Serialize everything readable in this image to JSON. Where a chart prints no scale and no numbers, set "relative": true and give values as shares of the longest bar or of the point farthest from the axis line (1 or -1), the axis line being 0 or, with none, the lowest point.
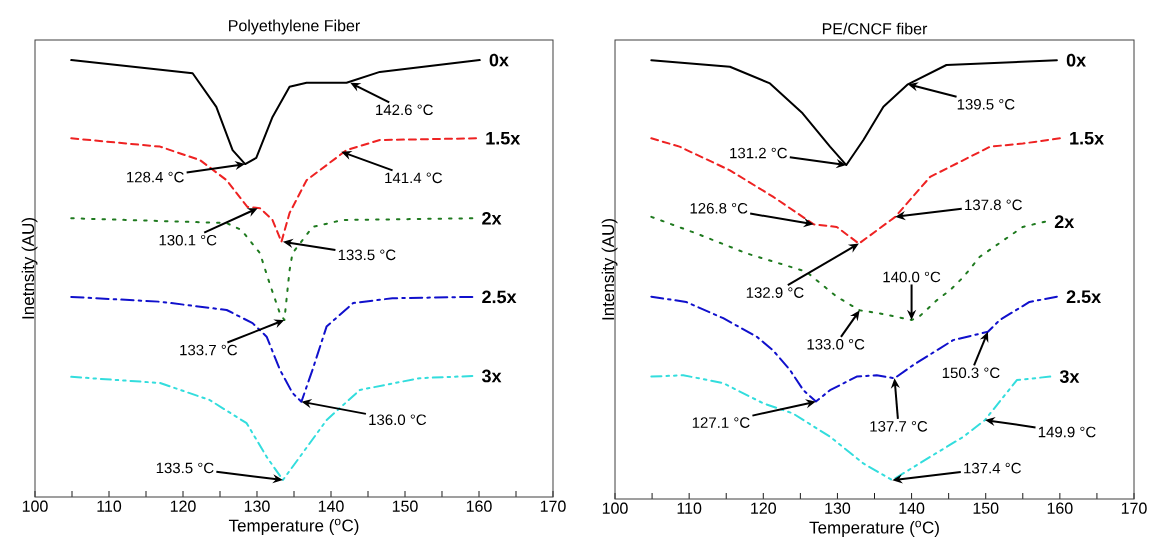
{
  "chart_data": [
    {
      "type": "line",
      "title": "Polyethylene Fiber",
      "xlabel": "Temperature ($^{o}$C)",
      "ylabel": "Inetnsity (AU)",
      "relative": true,
      "xlim": [
        100,
        170
      ],
      "xticks": [
        100,
        {
          "value": 105,
          "label": null
        },
        110,
        {
          "value": 115,
          "label": null
        },
        120,
        {
          "value": 125,
          "label": null
        },
        130,
        {
          "value": 135,
          "label": null
        },
        140,
        {
          "value": 145,
          "label": null
        },
        150,
        {
          "value": 155,
          "label": null
        },
        160,
        {
          "value": 165,
          "label": null
        },
        170
      ],
      "series": [
        {
          "name": "0x",
          "color": "#000000",
          "line_style": "solid",
          "x": [
            104.9,
            121.3,
            124.5,
            126.7,
            128.4,
            129.9,
            132.1,
            134.4,
            136.7,
            142.1,
            146.6,
            160.1
          ],
          "values": [
            1.0,
            0.97,
            0.893,
            0.794,
            0.762,
            0.776,
            0.87,
            0.939,
            0.948,
            0.948,
            0.973,
            1.0
          ]
        },
        {
          "name": "1.5x",
          "color": "#ee2222",
          "line_style": "dashed",
          "x": [
            104.9,
            116.9,
            122.3,
            125.9,
            128.7,
            130.4,
            132.1,
            133.3,
            134.4,
            136.7,
            142.1,
            146.6,
            159.6
          ],
          "values": [
            0.821,
            0.802,
            0.771,
            0.725,
            0.664,
            0.661,
            0.634,
            0.584,
            0.65,
            0.725,
            0.794,
            0.817,
            0.821
          ]
        },
        {
          "name": "2x",
          "color": "#1f7a1f",
          "line_style": "dotted",
          "x": [
            104.9,
            125.9,
            127.9,
            130.4,
            131.7,
            133.1,
            133.7,
            134.4,
            134.8,
            137.5,
            141.6,
            159.1
          ],
          "values": [
            0.638,
            0.627,
            0.611,
            0.558,
            0.489,
            0.42,
            0.405,
            0.519,
            0.558,
            0.618,
            0.634,
            0.638
          ]
        },
        {
          "name": "2.5x",
          "color": "#1010cc",
          "line_style": "dashdot",
          "x": [
            104.9,
            116.9,
            125.9,
            129.4,
            131.3,
            133.1,
            134.8,
            136.0,
            137.5,
            139.4,
            143.0,
            148.3,
            159.1
          ],
          "values": [
            0.458,
            0.447,
            0.428,
            0.398,
            0.367,
            0.291,
            0.238,
            0.218,
            0.291,
            0.39,
            0.444,
            0.455,
            0.458
          ]
        },
        {
          "name": "3x",
          "color": "#33dddd",
          "line_style": "dashdotdotted",
          "x": [
            104.9,
            116.9,
            123.6,
            128.6,
            131.3,
            133.5,
            135.8,
            139.4,
            143.9,
            152.0,
            159.1
          ],
          "values": [
            0.275,
            0.261,
            0.222,
            0.169,
            0.092,
            0.039,
            0.092,
            0.176,
            0.245,
            0.272,
            0.277
          ]
        }
      ],
      "annotations": [
        {
          "text": "142.6 °C",
          "x": 142.6,
          "y": 0.948
        },
        {
          "text": "128.4 °C",
          "x": 128.4,
          "y": 0.762
        },
        {
          "text": "141.4 °C",
          "x": 141.4,
          "y": 0.79
        },
        {
          "text": "130.1 °C",
          "x": 130.1,
          "y": 0.661
        },
        {
          "text": "133.5 °C",
          "x": 133.5,
          "y": 0.584
        },
        {
          "text": "133.7 °C",
          "x": 133.7,
          "y": 0.405
        },
        {
          "text": "136.0 °C",
          "x": 136.0,
          "y": 0.218
        },
        {
          "text": "133.5 °C",
          "x": 133.5,
          "y": 0.039
        }
      ]
    },
    {
      "type": "line",
      "title": "PE/CNCF fiber",
      "xlabel": "Temperature ($^{o}$C)",
      "ylabel": "Intensity (AU)",
      "relative": true,
      "xlim": [
        100,
        170
      ],
      "xticks": [
        100,
        {
          "value": 105,
          "label": null
        },
        110,
        {
          "value": 115,
          "label": null
        },
        120,
        {
          "value": 125,
          "label": null
        },
        130,
        {
          "value": 135,
          "label": null
        },
        140,
        {
          "value": 145,
          "label": null
        },
        150,
        {
          "value": 155,
          "label": null
        },
        160,
        {
          "value": 165,
          "label": null
        },
        170
      ],
      "series": [
        {
          "name": "0x",
          "color": "#000000",
          "line_style": "solid",
          "x": [
            104.9,
            115.5,
            120.9,
            125.3,
            129.0,
            131.2,
            133.5,
            136.2,
            139.5,
            144.7,
            159.6
          ],
          "values": [
            1.0,
            0.985,
            0.947,
            0.879,
            0.803,
            0.761,
            0.818,
            0.894,
            0.945,
            0.989,
            1.0
          ]
        },
        {
          "name": "1.5x",
          "color": "#ee2222",
          "line_style": "dashed",
          "x": [
            104.9,
            108.7,
            115.5,
            121.3,
            126.8,
            129.9,
            132.9,
            137.8,
            142.5,
            150.6,
            155.0,
            160.0
          ],
          "values": [
            0.822,
            0.803,
            0.749,
            0.689,
            0.626,
            0.62,
            0.582,
            0.643,
            0.734,
            0.803,
            0.81,
            0.822
          ]
        },
        {
          "name": "2x",
          "color": "#1f7a1f",
          "line_style": "dotted",
          "x": [
            104.9,
            111.0,
            117.7,
            125.8,
            129.9,
            133.0,
            135.7,
            140.0,
            141.0,
            143.4,
            145.2,
            147.0,
            149.2,
            155.0,
            158.0
          ],
          "values": [
            0.643,
            0.605,
            0.56,
            0.518,
            0.461,
            0.43,
            0.423,
            0.408,
            0.415,
            0.453,
            0.476,
            0.506,
            0.552,
            0.62,
            0.632
          ]
        },
        {
          "name": "2.5x",
          "color": "#1010cc",
          "line_style": "dashdot",
          "x": [
            104.9,
            109.6,
            114.6,
            119.1,
            121.3,
            123.6,
            125.4,
            127.1,
            129.0,
            132.6,
            135.3,
            137.7,
            140.2,
            145.6,
            150.3,
            151.9,
            155.9,
            159.6
          ],
          "values": [
            0.461,
            0.449,
            0.412,
            0.37,
            0.339,
            0.294,
            0.248,
            0.222,
            0.248,
            0.279,
            0.282,
            0.275,
            0.305,
            0.362,
            0.381,
            0.408,
            0.449,
            0.461
          ]
        },
        {
          "name": "3x",
          "color": "#33dddd",
          "line_style": "dashdotdotted",
          "x": [
            104.9,
            109.2,
            114.6,
            120.0,
            124.0,
            129.0,
            133.5,
            137.4,
            142.5,
            147.0,
            149.9,
            152.4,
            154.2,
            158.7
          ],
          "values": [
            0.279,
            0.282,
            0.264,
            0.218,
            0.195,
            0.142,
            0.081,
            0.043,
            0.096,
            0.142,
            0.18,
            0.233,
            0.271,
            0.279
          ]
        }
      ],
      "annotations": [
        {
          "text": "139.5 °C",
          "x": 139.5,
          "y": 0.945
        },
        {
          "text": "131.2 °C",
          "x": 131.2,
          "y": 0.761
        },
        {
          "text": "126.8 °C",
          "x": 126.8,
          "y": 0.626
        },
        {
          "text": "137.8 °C",
          "x": 137.8,
          "y": 0.643
        },
        {
          "text": "132.9 °C",
          "x": 132.9,
          "y": 0.582
        },
        {
          "text": "140.0 °C",
          "x": 140.0,
          "y": 0.408
        },
        {
          "text": "133.0 °C",
          "x": 133.0,
          "y": 0.43
        },
        {
          "text": "150.3 °C",
          "x": 150.3,
          "y": 0.381
        },
        {
          "text": "127.1 °C",
          "x": 127.1,
          "y": 0.222
        },
        {
          "text": "137.7 °C",
          "x": 137.7,
          "y": 0.275
        },
        {
          "text": "149.9 °C",
          "x": 149.9,
          "y": 0.18
        },
        {
          "text": "137.4 °C",
          "x": 137.4,
          "y": 0.043
        }
      ]
    }
  ]
}
